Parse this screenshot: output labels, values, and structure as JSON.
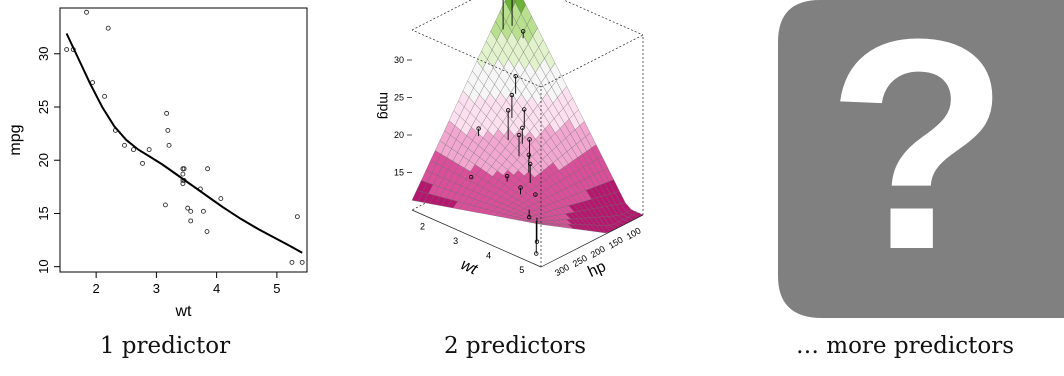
{
  "captions": [
    "1 predictor",
    "2 predictors",
    "… more predictors"
  ],
  "chart_data": [
    {
      "type": "scatter",
      "title": "",
      "xlabel": "wt",
      "ylabel": "mpg",
      "xlim": [
        1.4,
        5.5
      ],
      "ylim": [
        9.5,
        34.3
      ],
      "xticks": [
        "2",
        "3",
        "4",
        "5"
      ],
      "yticks": [
        "10",
        "15",
        "20",
        "25",
        "30"
      ],
      "series": [
        {
          "points": [
            [
              1.51,
              30.4
            ],
            [
              1.62,
              30.4
            ],
            [
              1.84,
              33.9
            ],
            [
              1.94,
              27.3
            ],
            [
              2.14,
              26.0
            ],
            [
              2.2,
              32.4
            ],
            [
              2.32,
              22.8
            ],
            [
              2.47,
              21.4
            ],
            [
              2.62,
              21.0
            ],
            [
              2.77,
              19.7
            ],
            [
              2.88,
              21.0
            ],
            [
              3.15,
              15.8
            ],
            [
              3.17,
              24.4
            ],
            [
              3.19,
              22.8
            ],
            [
              3.21,
              21.4
            ],
            [
              3.44,
              18.1
            ],
            [
              3.44,
              18.7
            ],
            [
              3.44,
              17.8
            ],
            [
              3.44,
              19.2
            ],
            [
              3.46,
              19.2
            ],
            [
              3.46,
              18.1
            ],
            [
              3.52,
              15.5
            ],
            [
              3.57,
              15.2
            ],
            [
              3.57,
              14.3
            ],
            [
              3.73,
              17.3
            ],
            [
              3.78,
              15.2
            ],
            [
              3.84,
              13.3
            ],
            [
              3.85,
              19.2
            ],
            [
              4.07,
              16.4
            ],
            [
              5.25,
              10.4
            ],
            [
              5.34,
              14.7
            ],
            [
              5.42,
              10.4
            ]
          ]
        },
        {
          "type": "line",
          "points": [
            [
              1.51,
              31.9
            ],
            [
              1.7,
              29.6
            ],
            [
              1.9,
              27.2
            ],
            [
              2.1,
              25.0
            ],
            [
              2.3,
              23.2
            ],
            [
              2.5,
              21.9
            ],
            [
              2.7,
              21.0
            ],
            [
              2.9,
              20.3
            ],
            [
              3.1,
              19.6
            ],
            [
              3.3,
              18.8
            ],
            [
              3.5,
              18.0
            ],
            [
              3.7,
              17.2
            ],
            [
              3.9,
              16.4
            ],
            [
              4.1,
              15.6
            ],
            [
              4.4,
              14.5
            ],
            [
              4.7,
              13.5
            ],
            [
              5.0,
              12.6
            ],
            [
              5.2,
              12.0
            ],
            [
              5.42,
              11.3
            ]
          ]
        }
      ],
      "grid": false,
      "colors": {
        "points": "#333333",
        "line": "#000000"
      }
    },
    {
      "type": "surface",
      "title": "",
      "xlabel": "wt",
      "ylabel": "hp",
      "zlabel": "mpg",
      "xticks": [
        "2",
        "3",
        "4",
        "5"
      ],
      "yticks": [
        "100",
        "150",
        "200",
        "250",
        "300"
      ],
      "zticks": [
        "15",
        "20",
        "25",
        "30"
      ],
      "colors": [
        "#b5176f",
        "#d94f9a",
        "#f1a7cf",
        "#fce0ef",
        "#f6f6f6",
        "#e1f2cc",
        "#b9e08f",
        "#6fb23a"
      ]
    }
  ],
  "placeholder": {
    "icon": "question-mark-icon",
    "symbol": "?",
    "color": "#808080"
  }
}
